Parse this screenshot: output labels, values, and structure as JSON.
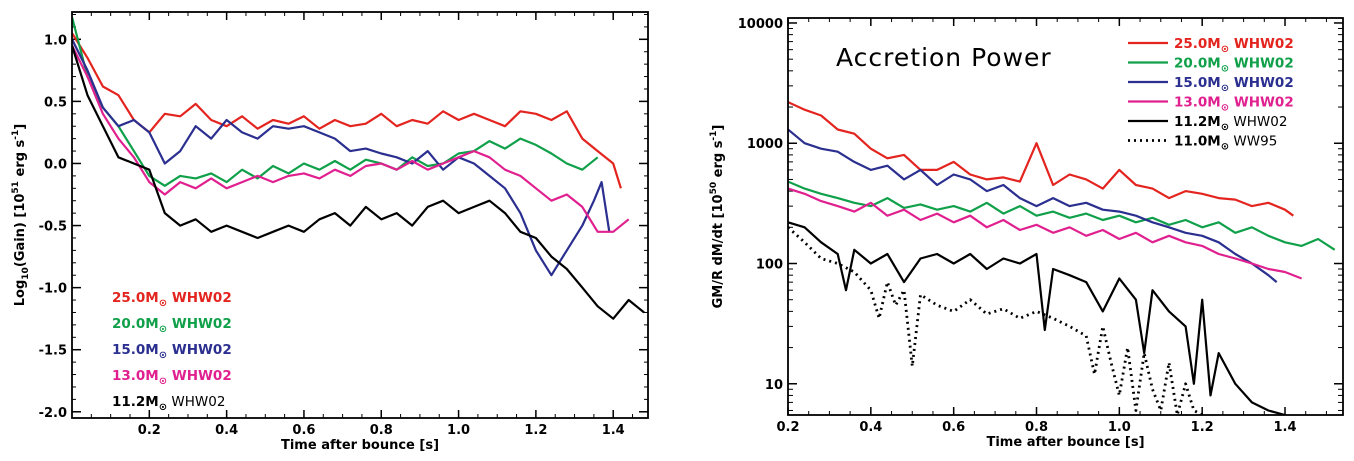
{
  "colors": {
    "25.0": "#e3241f",
    "20.0": "#10a04a",
    "15.0": "#2b2f8f",
    "13.0": "#e0208f",
    "11.2": "#000000",
    "11.0": "#000000"
  },
  "chart_data": [
    {
      "type": "line",
      "xlabel": "Time after bounce [s]",
      "ylabel": "Log10(Gain) [10^51 erg s^-1]",
      "ylabel_parts": {
        "a": "Log",
        "a_sub": "10",
        "b": "(Gain) [10",
        "b_sup": "51",
        "c": " erg s",
        "c_sup": "-1",
        "d": "]"
      },
      "xlim": [
        0.0,
        1.49
      ],
      "ylim": [
        -2.05,
        1.22
      ],
      "xticks": [
        "0.2",
        "0.4",
        "0.6",
        "0.8",
        "1.0",
        "1.2",
        "1.4"
      ],
      "yticks": [
        "1.0",
        "0.5",
        "0.0",
        "-0.5",
        "-1.0",
        "-1.5",
        "-2.0"
      ],
      "legend_position": "lower-left",
      "series": [
        {
          "name": "25.0M⊙ WHW02",
          "mass": "25.0M",
          "model": "WHW02",
          "color_key": "25.0",
          "x": [
            0.0,
            0.04,
            0.08,
            0.12,
            0.16,
            0.2,
            0.24,
            0.28,
            0.32,
            0.36,
            0.4,
            0.44,
            0.48,
            0.52,
            0.56,
            0.6,
            0.64,
            0.68,
            0.72,
            0.76,
            0.8,
            0.84,
            0.88,
            0.92,
            0.96,
            1.0,
            1.04,
            1.08,
            1.12,
            1.16,
            1.2,
            1.24,
            1.28,
            1.32,
            1.36,
            1.4,
            1.42
          ],
          "y": [
            1.05,
            0.85,
            0.62,
            0.55,
            0.35,
            0.25,
            0.4,
            0.38,
            0.48,
            0.35,
            0.3,
            0.38,
            0.28,
            0.35,
            0.32,
            0.38,
            0.28,
            0.35,
            0.3,
            0.32,
            0.4,
            0.3,
            0.35,
            0.32,
            0.42,
            0.35,
            0.4,
            0.35,
            0.3,
            0.42,
            0.4,
            0.35,
            0.42,
            0.2,
            0.1,
            0.0,
            -0.2
          ]
        },
        {
          "name": "20.0M⊙ WHW02",
          "mass": "20.0M",
          "model": "WHW02",
          "color_key": "20.0",
          "x": [
            0.0,
            0.04,
            0.08,
            0.12,
            0.16,
            0.2,
            0.24,
            0.28,
            0.32,
            0.36,
            0.4,
            0.44,
            0.48,
            0.52,
            0.56,
            0.6,
            0.64,
            0.68,
            0.72,
            0.76,
            0.8,
            0.84,
            0.88,
            0.92,
            0.96,
            1.0,
            1.04,
            1.08,
            1.12,
            1.16,
            1.2,
            1.24,
            1.28,
            1.32,
            1.36
          ],
          "y": [
            1.18,
            0.7,
            0.45,
            0.3,
            0.1,
            -0.1,
            -0.18,
            -0.1,
            -0.12,
            -0.08,
            -0.15,
            -0.05,
            -0.12,
            -0.02,
            -0.08,
            0.0,
            -0.05,
            0.02,
            -0.05,
            0.03,
            0.0,
            -0.05,
            0.05,
            -0.02,
            0.0,
            0.08,
            0.1,
            0.18,
            0.12,
            0.2,
            0.15,
            0.08,
            0.0,
            -0.05,
            0.05
          ]
        },
        {
          "name": "15.0M⊙ WHW02",
          "mass": "15.0M",
          "model": "WHW02",
          "color_key": "15.0",
          "x": [
            0.0,
            0.04,
            0.08,
            0.12,
            0.16,
            0.2,
            0.24,
            0.28,
            0.32,
            0.36,
            0.4,
            0.44,
            0.48,
            0.52,
            0.56,
            0.6,
            0.64,
            0.68,
            0.72,
            0.76,
            0.8,
            0.84,
            0.88,
            0.92,
            0.96,
            1.0,
            1.04,
            1.08,
            1.12,
            1.16,
            1.2,
            1.24,
            1.28,
            1.32,
            1.35,
            1.37,
            1.39
          ],
          "y": [
            1.0,
            0.75,
            0.45,
            0.3,
            0.35,
            0.25,
            0.0,
            0.1,
            0.3,
            0.2,
            0.35,
            0.25,
            0.2,
            0.3,
            0.28,
            0.3,
            0.25,
            0.2,
            0.1,
            0.12,
            0.08,
            0.05,
            0.0,
            0.1,
            -0.05,
            0.05,
            0.0,
            -0.1,
            -0.2,
            -0.4,
            -0.7,
            -0.9,
            -0.7,
            -0.5,
            -0.3,
            -0.15,
            -0.55
          ]
        },
        {
          "name": "13.0M⊙ WHW02",
          "mass": "13.0M",
          "model": "WHW02",
          "color_key": "13.0",
          "x": [
            0.0,
            0.04,
            0.08,
            0.12,
            0.16,
            0.2,
            0.24,
            0.28,
            0.32,
            0.36,
            0.4,
            0.44,
            0.48,
            0.52,
            0.56,
            0.6,
            0.64,
            0.68,
            0.72,
            0.76,
            0.8,
            0.84,
            0.88,
            0.92,
            0.96,
            1.0,
            1.04,
            1.08,
            1.12,
            1.16,
            1.2,
            1.24,
            1.28,
            1.32,
            1.36,
            1.4,
            1.44
          ],
          "y": [
            0.95,
            0.7,
            0.4,
            0.2,
            0.05,
            -0.15,
            -0.25,
            -0.15,
            -0.2,
            -0.12,
            -0.2,
            -0.15,
            -0.1,
            -0.15,
            -0.1,
            -0.08,
            -0.12,
            -0.05,
            -0.1,
            -0.02,
            0.0,
            -0.05,
            0.02,
            -0.05,
            0.0,
            0.05,
            0.1,
            0.05,
            -0.05,
            -0.1,
            -0.2,
            -0.3,
            -0.25,
            -0.35,
            -0.55,
            -0.55,
            -0.45
          ]
        },
        {
          "name": "11.2M⊙ WHW02",
          "mass": "11.2M",
          "model": "WHW02",
          "color_key": "11.2",
          "x": [
            0.0,
            0.04,
            0.08,
            0.12,
            0.16,
            0.2,
            0.24,
            0.28,
            0.32,
            0.36,
            0.4,
            0.44,
            0.48,
            0.52,
            0.56,
            0.6,
            0.64,
            0.68,
            0.72,
            0.76,
            0.8,
            0.84,
            0.88,
            0.92,
            0.96,
            1.0,
            1.04,
            1.08,
            1.12,
            1.16,
            1.2,
            1.24,
            1.28,
            1.32,
            1.36,
            1.4,
            1.44,
            1.48
          ],
          "y": [
            0.95,
            0.55,
            0.3,
            0.05,
            0.0,
            -0.05,
            -0.4,
            -0.5,
            -0.45,
            -0.55,
            -0.5,
            -0.55,
            -0.6,
            -0.55,
            -0.5,
            -0.55,
            -0.45,
            -0.4,
            -0.5,
            -0.35,
            -0.45,
            -0.4,
            -0.5,
            -0.35,
            -0.3,
            -0.4,
            -0.35,
            -0.3,
            -0.4,
            -0.55,
            -0.6,
            -0.75,
            -0.85,
            -1.0,
            -1.15,
            -1.25,
            -1.1,
            -1.2
          ]
        }
      ]
    },
    {
      "type": "line",
      "xlabel": "Time after bounce [s]",
      "ylabel": "GM/R dM/dt [10^50 erg s^-1]",
      "ylabel_parts": {
        "a": "GM/R dM/dt [10",
        "a_sup": "50",
        "b": " erg s",
        "b_sup": "-1",
        "c": "]"
      },
      "annotation": "Accretion Power",
      "scale_y": "log",
      "xlim": [
        0.2,
        1.54
      ],
      "ylim": [
        5.5,
        11000
      ],
      "xticks": [
        "0.2",
        "0.4",
        "0.6",
        "0.8",
        "1.0",
        "1.2",
        "1.4"
      ],
      "yticks": [
        "10000",
        "1000",
        "100",
        "10"
      ],
      "legend_position": "top-right",
      "series": [
        {
          "name": "25.0M⊙ WHW02",
          "mass": "25.0M",
          "model": "WHW02",
          "color_key": "25.0",
          "dash": false,
          "x": [
            0.2,
            0.24,
            0.28,
            0.32,
            0.36,
            0.4,
            0.44,
            0.48,
            0.52,
            0.56,
            0.6,
            0.64,
            0.68,
            0.72,
            0.76,
            0.8,
            0.84,
            0.88,
            0.92,
            0.96,
            1.0,
            1.04,
            1.08,
            1.12,
            1.16,
            1.2,
            1.24,
            1.28,
            1.32,
            1.36,
            1.4,
            1.42
          ],
          "y": [
            2200,
            1900,
            1700,
            1300,
            1200,
            900,
            750,
            800,
            600,
            600,
            700,
            550,
            500,
            520,
            480,
            1000,
            450,
            550,
            500,
            420,
            600,
            450,
            420,
            350,
            400,
            380,
            350,
            340,
            300,
            320,
            280,
            250
          ]
        },
        {
          "name": "20.0M⊙ WHW02",
          "mass": "20.0M",
          "model": "WHW02",
          "color_key": "20.0",
          "dash": false,
          "x": [
            0.2,
            0.24,
            0.28,
            0.32,
            0.36,
            0.4,
            0.44,
            0.48,
            0.52,
            0.56,
            0.6,
            0.64,
            0.68,
            0.72,
            0.76,
            0.8,
            0.84,
            0.88,
            0.92,
            0.96,
            1.0,
            1.04,
            1.08,
            1.12,
            1.16,
            1.2,
            1.24,
            1.28,
            1.32,
            1.36,
            1.4,
            1.44,
            1.48,
            1.52
          ],
          "y": [
            480,
            420,
            380,
            350,
            320,
            300,
            350,
            290,
            310,
            280,
            300,
            270,
            320,
            260,
            300,
            250,
            270,
            240,
            260,
            230,
            250,
            220,
            240,
            210,
            230,
            200,
            220,
            180,
            200,
            170,
            150,
            140,
            160,
            130
          ]
        },
        {
          "name": "15.0M⊙ WHW02",
          "mass": "15.0M",
          "model": "WHW02",
          "color_key": "15.0",
          "dash": false,
          "x": [
            0.2,
            0.24,
            0.28,
            0.32,
            0.36,
            0.4,
            0.44,
            0.48,
            0.52,
            0.56,
            0.6,
            0.64,
            0.68,
            0.72,
            0.76,
            0.8,
            0.84,
            0.88,
            0.92,
            0.96,
            1.0,
            1.04,
            1.08,
            1.12,
            1.16,
            1.2,
            1.24,
            1.28,
            1.32,
            1.36,
            1.38
          ],
          "y": [
            1300,
            1000,
            900,
            850,
            700,
            600,
            650,
            500,
            600,
            450,
            550,
            500,
            400,
            450,
            350,
            300,
            350,
            300,
            320,
            280,
            270,
            250,
            220,
            200,
            180,
            170,
            150,
            120,
            100,
            80,
            70
          ]
        },
        {
          "name": "13.0M⊙ WHW02",
          "mass": "13.0M",
          "model": "WHW02",
          "color_key": "13.0",
          "dash": false,
          "x": [
            0.2,
            0.24,
            0.28,
            0.32,
            0.36,
            0.4,
            0.44,
            0.48,
            0.52,
            0.56,
            0.6,
            0.64,
            0.68,
            0.72,
            0.76,
            0.8,
            0.84,
            0.88,
            0.92,
            0.96,
            1.0,
            1.04,
            1.08,
            1.12,
            1.16,
            1.2,
            1.24,
            1.28,
            1.32,
            1.36,
            1.4,
            1.44
          ],
          "y": [
            420,
            380,
            330,
            300,
            270,
            320,
            250,
            280,
            230,
            260,
            220,
            250,
            200,
            230,
            190,
            210,
            180,
            200,
            170,
            190,
            160,
            180,
            150,
            170,
            150,
            140,
            120,
            110,
            100,
            90,
            85,
            75
          ]
        },
        {
          "name": "11.2M⊙ WHW02",
          "mass": "11.2M",
          "model": "WHW02",
          "color_key": "11.2",
          "dash": false,
          "x": [
            0.2,
            0.24,
            0.28,
            0.32,
            0.34,
            0.36,
            0.4,
            0.44,
            0.48,
            0.52,
            0.56,
            0.6,
            0.64,
            0.68,
            0.72,
            0.76,
            0.8,
            0.82,
            0.84,
            0.88,
            0.92,
            0.96,
            1.0,
            1.04,
            1.06,
            1.08,
            1.12,
            1.16,
            1.18,
            1.2,
            1.22,
            1.24,
            1.28,
            1.32,
            1.36,
            1.4
          ],
          "y": [
            220,
            200,
            150,
            120,
            60,
            130,
            100,
            120,
            70,
            110,
            120,
            100,
            120,
            90,
            110,
            100,
            120,
            28,
            90,
            80,
            70,
            40,
            75,
            50,
            18,
            60,
            40,
            30,
            10,
            50,
            8,
            18,
            10,
            7,
            6,
            5.5
          ]
        },
        {
          "name": "11.0M⊙ WW95",
          "mass": "11.0M",
          "model": "WW95",
          "color_key": "11.0",
          "dash": true,
          "x": [
            0.2,
            0.24,
            0.28,
            0.32,
            0.36,
            0.4,
            0.42,
            0.44,
            0.46,
            0.48,
            0.5,
            0.52,
            0.56,
            0.6,
            0.64,
            0.68,
            0.72,
            0.76,
            0.8,
            0.84,
            0.88,
            0.92,
            0.94,
            0.96,
            0.98,
            1.0,
            1.02,
            1.04,
            1.06,
            1.08,
            1.1,
            1.12,
            1.14,
            1.16,
            1.18,
            1.2
          ],
          "y": [
            200,
            150,
            110,
            100,
            85,
            60,
            35,
            70,
            45,
            60,
            14,
            55,
            45,
            40,
            50,
            38,
            42,
            35,
            40,
            35,
            30,
            25,
            12,
            30,
            15,
            8,
            20,
            6,
            18,
            9,
            6,
            15,
            5.5,
            10,
            6,
            5.5
          ]
        }
      ]
    }
  ]
}
